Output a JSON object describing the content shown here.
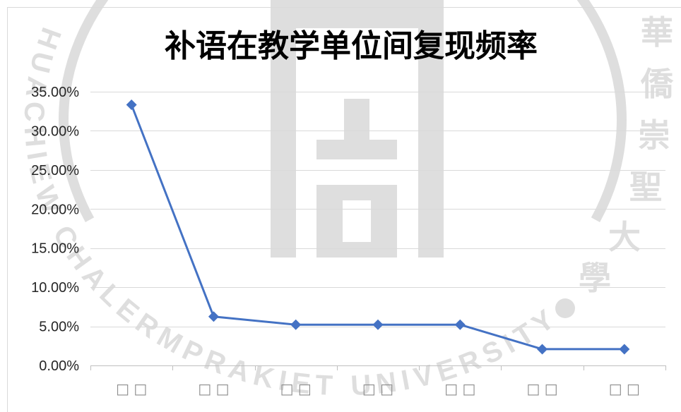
{
  "chart_data": {
    "type": "line",
    "title": "补语在教学单位间复现频率",
    "categories": [
      "□ □",
      "□ □",
      "□ □",
      "□ □",
      "□ □",
      "□ □",
      "□ □"
    ],
    "series": [
      {
        "values": [
          33.33,
          6.25,
          5.21,
          5.21,
          5.21,
          2.08,
          2.08
        ],
        "color": "#4472c4"
      }
    ],
    "ylim": [
      0,
      35
    ],
    "y_ticks": [
      0,
      5,
      10,
      15,
      20,
      25,
      30,
      35
    ],
    "y_tick_labels": [
      "0.00%",
      "5.00%",
      "10.00%",
      "15.00%",
      "20.00%",
      "25.00%",
      "30.00%",
      "35.00%"
    ],
    "grid": true
  },
  "colors": {
    "grid": "#d9d9d9",
    "axis": "#bfbfbf",
    "frame": "#d9d9d9",
    "tick_label": "#262626",
    "category_label": "#8c8c8c",
    "watermark": "#dedede"
  },
  "watermark": {
    "seal_text_en": "HUACHIEW CHALERMPRAKIET UNIVERSITY",
    "seal_text_zh": "華僑崇聖大學"
  }
}
